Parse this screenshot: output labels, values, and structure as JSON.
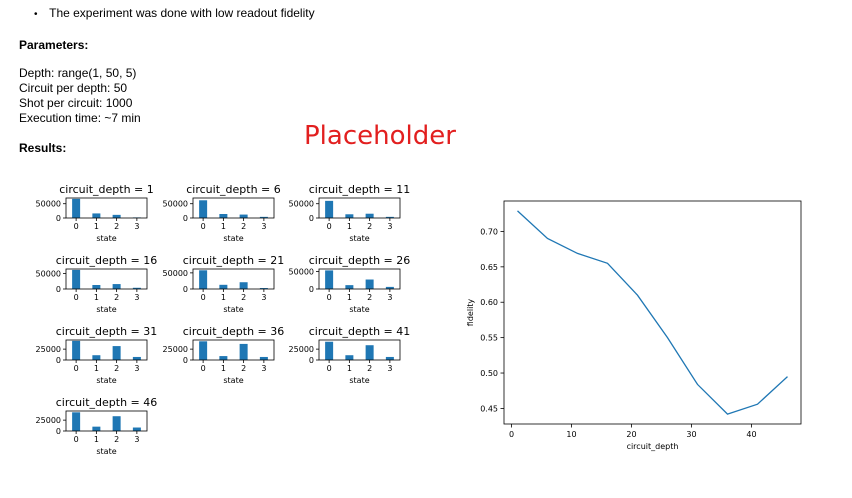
{
  "notes": {
    "bullet": "The experiment was done with low readout fidelity"
  },
  "parameters": {
    "heading": "Parameters:",
    "lines": [
      "Depth: range(1, 50, 5)",
      "Circuit per depth: 50",
      "Shot per circuit: 1000",
      "Execution time: ~7 min"
    ]
  },
  "results": {
    "heading": "Results:"
  },
  "placeholder": "Placeholder",
  "colors": {
    "bar": "#1f77b4",
    "line": "#1f77b4",
    "placeholder": "#e21f1f"
  },
  "chart_data": [
    {
      "type": "bar",
      "title": "circuit_depth = 1",
      "xlabel": "state",
      "categories": [
        0,
        1,
        2,
        3
      ],
      "values": [
        67000,
        16000,
        11000,
        2000
      ],
      "ylim": [
        0,
        70000
      ],
      "yticks": [
        50000
      ]
    },
    {
      "type": "bar",
      "title": "circuit_depth = 6",
      "xlabel": "state",
      "categories": [
        0,
        1,
        2,
        3
      ],
      "values": [
        62000,
        14000,
        12000,
        4000
      ],
      "ylim": [
        0,
        70000
      ],
      "yticks": [
        50000
      ]
    },
    {
      "type": "bar",
      "title": "circuit_depth = 11",
      "xlabel": "state",
      "categories": [
        0,
        1,
        2,
        3
      ],
      "values": [
        60000,
        13000,
        15000,
        4000
      ],
      "ylim": [
        0,
        70000
      ],
      "yticks": [
        50000
      ]
    },
    {
      "type": "bar",
      "title": "circuit_depth = 16",
      "xlabel": "state",
      "categories": [
        0,
        1,
        2,
        3
      ],
      "values": [
        62000,
        13000,
        16000,
        4000
      ],
      "ylim": [
        0,
        65000
      ],
      "yticks": [
        50000
      ]
    },
    {
      "type": "bar",
      "title": "circuit_depth = 21",
      "xlabel": "state",
      "categories": [
        0,
        1,
        2,
        3
      ],
      "values": [
        58000,
        13000,
        21000,
        3000
      ],
      "ylim": [
        0,
        62000
      ],
      "yticks": [
        50000
      ]
    },
    {
      "type": "bar",
      "title": "circuit_depth = 26",
      "xlabel": "state",
      "categories": [
        0,
        1,
        2,
        3
      ],
      "values": [
        53000,
        11000,
        27000,
        6000
      ],
      "ylim": [
        0,
        57000
      ],
      "yticks": [
        50000
      ]
    },
    {
      "type": "bar",
      "title": "circuit_depth = 31",
      "xlabel": "state",
      "categories": [
        0,
        1,
        2,
        3
      ],
      "values": [
        44000,
        11000,
        32000,
        7000
      ],
      "ylim": [
        0,
        46000
      ],
      "yticks": [
        25000
      ]
    },
    {
      "type": "bar",
      "title": "circuit_depth = 36",
      "xlabel": "state",
      "categories": [
        0,
        1,
        2,
        3
      ],
      "values": [
        43000,
        9000,
        37000,
        7000
      ],
      "ylim": [
        0,
        46000
      ],
      "yticks": [
        25000
      ]
    },
    {
      "type": "bar",
      "title": "circuit_depth = 41",
      "xlabel": "state",
      "categories": [
        0,
        1,
        2,
        3
      ],
      "values": [
        42000,
        11000,
        34000,
        7000
      ],
      "ylim": [
        0,
        46000
      ],
      "yticks": [
        25000
      ]
    },
    {
      "type": "bar",
      "title": "circuit_depth = 46",
      "xlabel": "state",
      "categories": [
        0,
        1,
        2,
        3
      ],
      "values": [
        43000,
        10000,
        34000,
        8000
      ],
      "ylim": [
        0,
        46000
      ],
      "yticks": [
        25000
      ]
    },
    {
      "type": "line",
      "xlabel": "circuit_depth",
      "ylabel": "fidelity",
      "x": [
        1,
        6,
        11,
        16,
        21,
        26,
        31,
        36,
        41,
        46
      ],
      "y": [
        0.729,
        0.69,
        0.669,
        0.655,
        0.61,
        0.55,
        0.484,
        0.442,
        0.456,
        0.495
      ],
      "xlim": [
        -1.25,
        48.25
      ],
      "ylim": [
        0.428,
        0.743
      ],
      "xticks": [
        0,
        10,
        20,
        30,
        40
      ],
      "yticks": [
        0.45,
        0.5,
        0.55,
        0.6,
        0.65,
        0.7
      ],
      "grid": false
    }
  ]
}
